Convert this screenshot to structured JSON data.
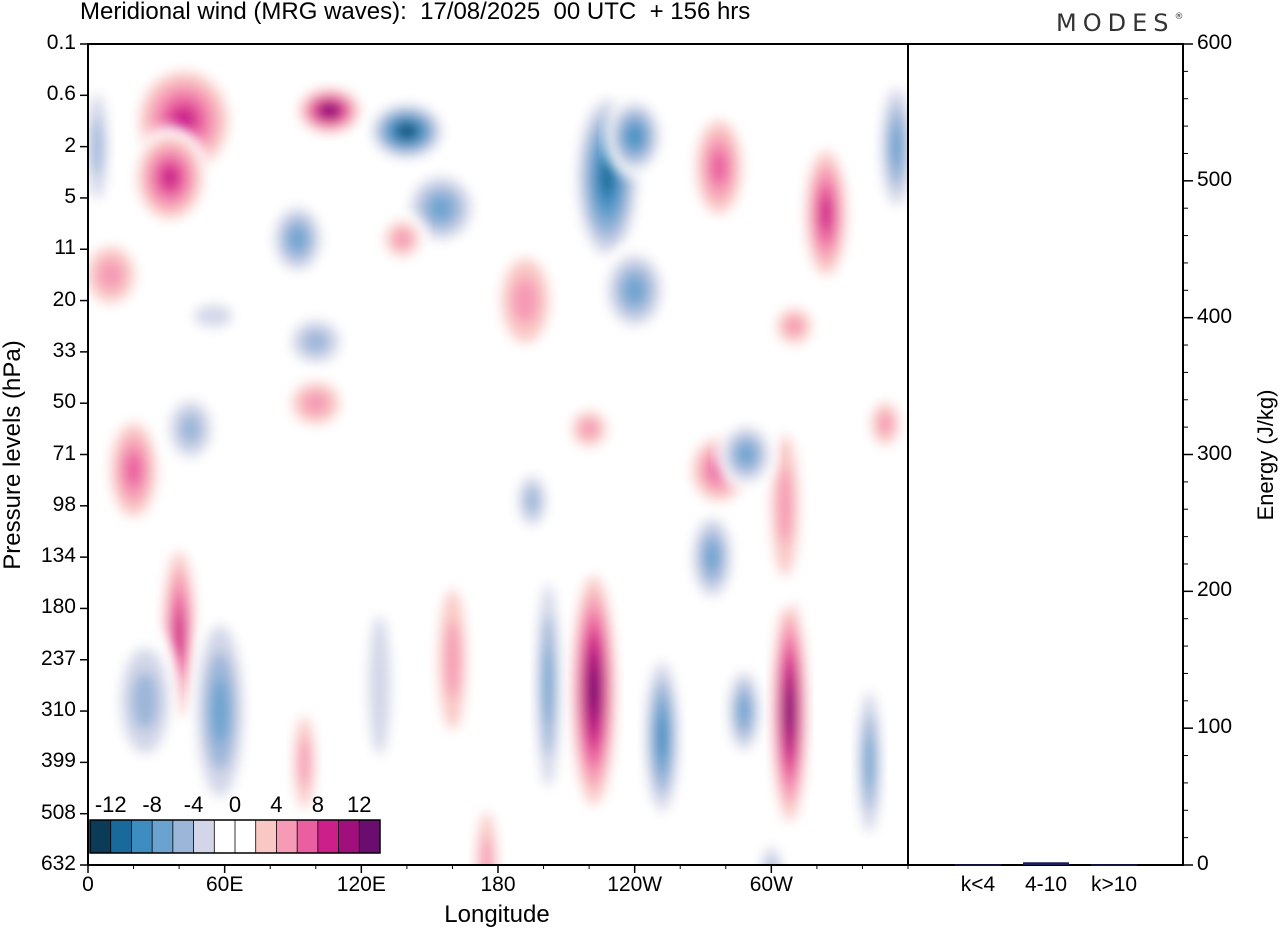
{
  "header": {
    "title": "Meridional wind (MRG waves):  17/08/2025  00 UTC  + 156 hrs",
    "brand": "MODES",
    "brand_mark": "®"
  },
  "chart_data": [
    {
      "type": "heatmap",
      "title": "Meridional wind (MRG waves)",
      "xlabel": "Longitude",
      "ylabel": "Pressure levels (hPa)",
      "x_ticks": [
        "0",
        "60E",
        "120E",
        "180",
        "120W",
        "60W"
      ],
      "x_tick_values": [
        0,
        60,
        120,
        180,
        240,
        300
      ],
      "xlim": [
        0,
        360
      ],
      "y_ticks": [
        "0.1",
        "0.6",
        "2",
        "5",
        "11",
        "20",
        "33",
        "50",
        "71",
        "98",
        "134",
        "180",
        "237",
        "310",
        "399",
        "508",
        "632"
      ],
      "colorbar": {
        "labels": [
          "-12",
          "-8",
          "-4",
          "0",
          "4",
          "8",
          "12"
        ],
        "colors": [
          "#0b3b57",
          "#176a9a",
          "#3d8dc0",
          "#6aa3cf",
          "#9bb6d9",
          "#d2d6e8",
          "#ffffff",
          "#ffffff",
          "#f9c8c5",
          "#f69ab6",
          "#ea5f9f",
          "#cc1f8a",
          "#a00f7c",
          "#6a0d6e"
        ]
      },
      "features": [
        {
          "lon": 106,
          "lev": 1.3,
          "value": 13,
          "w": 14,
          "h": 0.5
        },
        {
          "lon": 140,
          "lev": 1.7,
          "value": -13,
          "w": 16,
          "h": 0.6
        },
        {
          "lon": 42,
          "lev": 1.5,
          "value": 9,
          "w": 22,
          "h": 1.2
        },
        {
          "lon": 36,
          "lev": 2.6,
          "value": 9,
          "w": 16,
          "h": 1.0
        },
        {
          "lon": 228,
          "lev": 2.6,
          "value": -11,
          "w": 14,
          "h": 1.8
        },
        {
          "lon": 240,
          "lev": 1.8,
          "value": -8,
          "w": 12,
          "h": 0.8
        },
        {
          "lon": 277,
          "lev": 2.4,
          "value": 7,
          "w": 12,
          "h": 1.2
        },
        {
          "lon": 324,
          "lev": 3.3,
          "value": 8,
          "w": 10,
          "h": 1.5
        },
        {
          "lon": 92,
          "lev": 3.8,
          "value": -7,
          "w": 12,
          "h": 0.8
        },
        {
          "lon": 155,
          "lev": 3.2,
          "value": -7,
          "w": 16,
          "h": 0.8
        },
        {
          "lon": 240,
          "lev": 4.8,
          "value": -6,
          "w": 14,
          "h": 0.9
        },
        {
          "lon": 138,
          "lev": 3.8,
          "value": 4,
          "w": 10,
          "h": 0.5
        },
        {
          "lon": 192,
          "lev": 5.0,
          "value": 4,
          "w": 14,
          "h": 1.2
        },
        {
          "lon": 355,
          "lev": 2.0,
          "value": -6,
          "w": 8,
          "h": 1.5
        },
        {
          "lon": 4,
          "lev": 2.0,
          "value": -5,
          "w": 6,
          "h": 1.5
        },
        {
          "lon": 10,
          "lev": 4.5,
          "value": 5,
          "w": 14,
          "h": 0.8
        },
        {
          "lon": 100,
          "lev": 5.8,
          "value": -4,
          "w": 14,
          "h": 0.6
        },
        {
          "lon": 20,
          "lev": 8.3,
          "value": 6,
          "w": 12,
          "h": 1.2
        },
        {
          "lon": 40,
          "lev": 11.5,
          "value": 8,
          "w": 8,
          "h": 2.0
        },
        {
          "lon": 25,
          "lev": 12.8,
          "value": -4,
          "w": 14,
          "h": 1.5
        },
        {
          "lon": 58,
          "lev": 13.0,
          "value": -6,
          "w": 12,
          "h": 2.2
        },
        {
          "lon": 95,
          "lev": 14.0,
          "value": 4,
          "w": 6,
          "h": 1.3
        },
        {
          "lon": 128,
          "lev": 12.5,
          "value": -3,
          "w": 8,
          "h": 2.5
        },
        {
          "lon": 160,
          "lev": 12.0,
          "value": 4,
          "w": 8,
          "h": 2.0
        },
        {
          "lon": 222,
          "lev": 12.6,
          "value": 13,
          "w": 10,
          "h": 2.6
        },
        {
          "lon": 202,
          "lev": 12.5,
          "value": -6,
          "w": 6,
          "h": 2.6
        },
        {
          "lon": 252,
          "lev": 13.5,
          "value": -9,
          "w": 8,
          "h": 1.8
        },
        {
          "lon": 274,
          "lev": 10.0,
          "value": -7,
          "w": 10,
          "h": 1.0
        },
        {
          "lon": 288,
          "lev": 13.0,
          "value": -7,
          "w": 8,
          "h": 1.0
        },
        {
          "lon": 308,
          "lev": 13.0,
          "value": 13,
          "w": 8,
          "h": 2.5
        },
        {
          "lon": 306,
          "lev": 9.0,
          "value": 4,
          "w": 8,
          "h": 2.0
        },
        {
          "lon": 343,
          "lev": 14.0,
          "value": -6,
          "w": 6,
          "h": 1.8
        },
        {
          "lon": 277,
          "lev": 8.3,
          "value": 6,
          "w": 14,
          "h": 0.8
        },
        {
          "lon": 289,
          "lev": 8.0,
          "value": -6,
          "w": 12,
          "h": 0.7
        },
        {
          "lon": 45,
          "lev": 7.5,
          "value": -5,
          "w": 12,
          "h": 0.8
        },
        {
          "lon": 310,
          "lev": 5.5,
          "value": 4,
          "w": 10,
          "h": 0.5
        },
        {
          "lon": 195,
          "lev": 8.9,
          "value": -5,
          "w": 8,
          "h": 0.7
        },
        {
          "lon": 220,
          "lev": 7.5,
          "value": 4,
          "w": 10,
          "h": 0.5
        },
        {
          "lon": 100,
          "lev": 7.0,
          "value": 4,
          "w": 14,
          "h": 0.6
        },
        {
          "lon": 55,
          "lev": 5.3,
          "value": -3,
          "w": 14,
          "h": 0.4
        },
        {
          "lon": 175,
          "lev": 16.0,
          "value": 4,
          "w": 6,
          "h": 1.5
        },
        {
          "lon": 300,
          "lev": 16.2,
          "value": -5,
          "w": 6,
          "h": 0.8
        },
        {
          "lon": 350,
          "lev": 7.4,
          "value": 4,
          "w": 8,
          "h": 0.6
        }
      ]
    },
    {
      "type": "bar",
      "ylabel": "Energy (J/kg)",
      "categories": [
        "k<4",
        "4-10",
        "k>10"
      ],
      "values": [
        0.5,
        2,
        0.5
      ],
      "ylim": [
        0,
        600
      ],
      "y_ticks": [
        "0",
        "100",
        "200",
        "300",
        "400",
        "500",
        "600"
      ],
      "bar_color": "#1a1a5e"
    }
  ]
}
